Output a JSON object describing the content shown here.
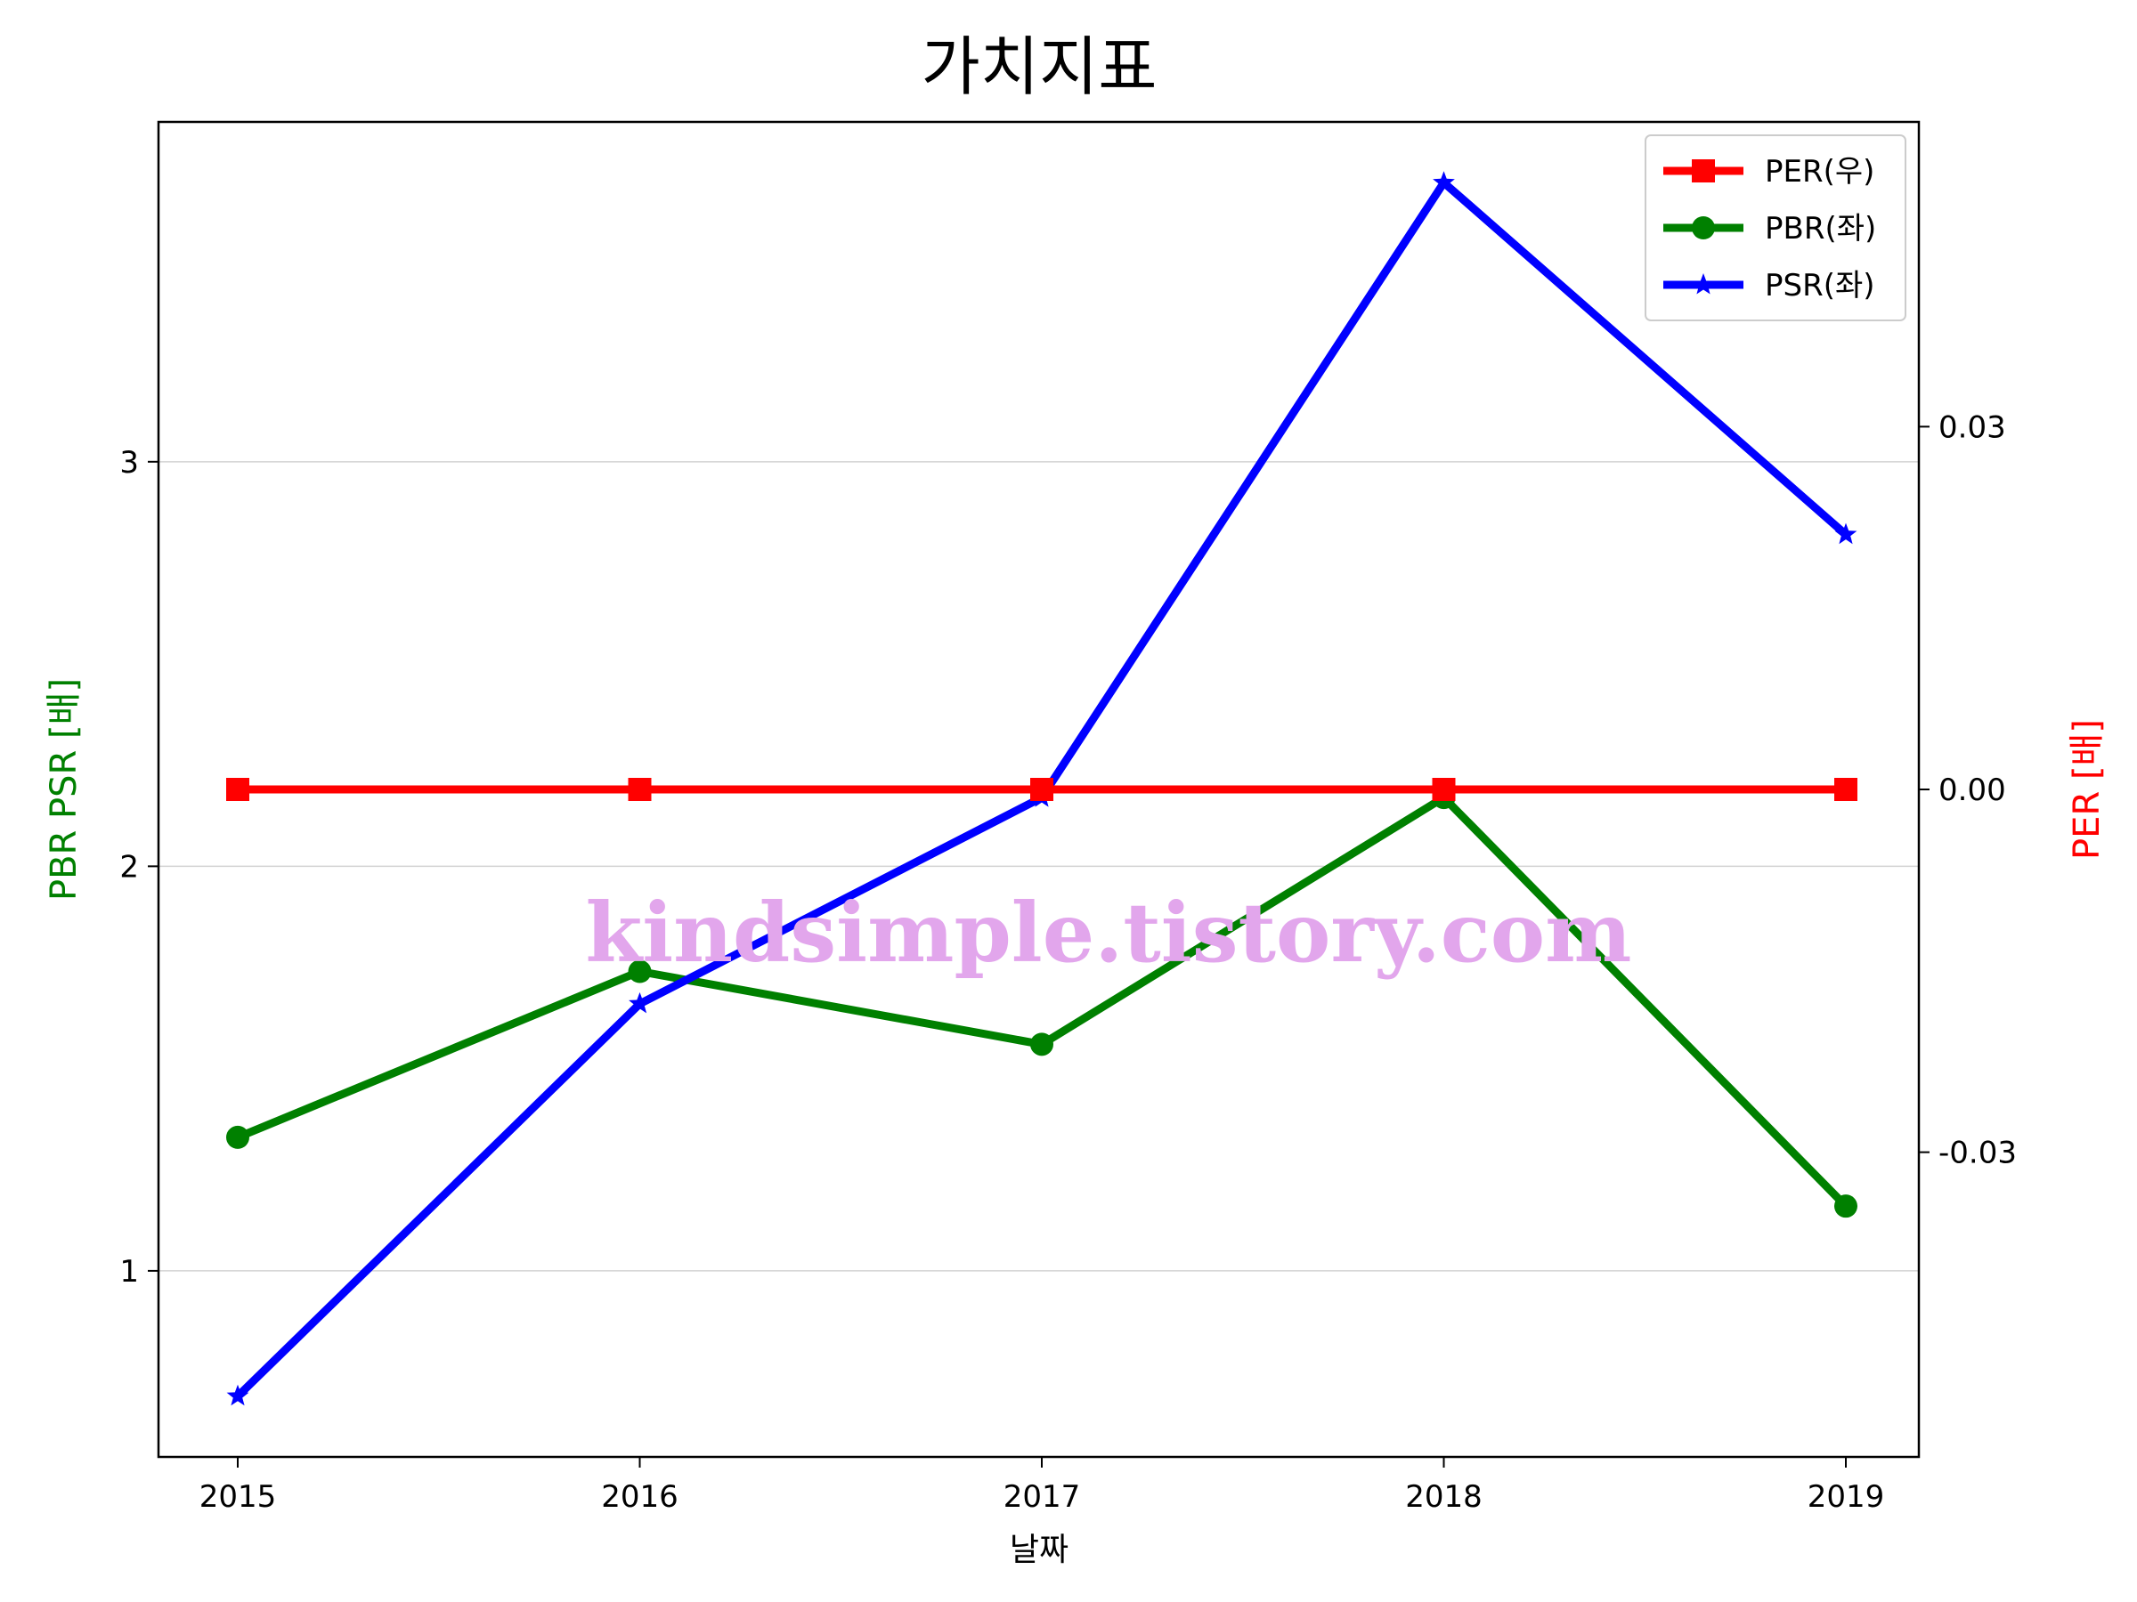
{
  "chart_data": {
    "type": "line",
    "title": "가치지표",
    "xlabel": "날짜",
    "ylabel_left": "PBR PSR [배]",
    "ylabel_right": "PER [배]",
    "categories": [
      "2015",
      "2016",
      "2017",
      "2018",
      "2019"
    ],
    "left_axis": {
      "ylim": [
        0.54,
        3.84
      ],
      "ticks": [
        1,
        2,
        3
      ],
      "tick_labels": [
        "1",
        "2",
        "3"
      ]
    },
    "right_axis": {
      "ylim": [
        -0.0552,
        0.0552
      ],
      "ticks": [
        0.03,
        0.0,
        -0.03
      ],
      "tick_labels": [
        "0.03",
        "0.00",
        "-0.03"
      ]
    },
    "grid": "horizontal",
    "legend_position": "top-right",
    "series": [
      {
        "name": "PER(우)",
        "axis": "right",
        "color": "#ff0000",
        "marker": "square",
        "values": [
          0,
          0,
          0,
          0,
          0
        ]
      },
      {
        "name": "PBR(좌)",
        "axis": "left",
        "color": "#008000",
        "marker": "circle",
        "values": [
          1.33,
          1.74,
          1.56,
          2.17,
          1.16
        ]
      },
      {
        "name": "PSR(좌)",
        "axis": "left",
        "color": "#0000ff",
        "marker": "star",
        "values": [
          0.69,
          1.66,
          2.17,
          3.69,
          2.82
        ]
      }
    ],
    "watermark": {
      "text": "kindsimple.tistory.com",
      "color": "#e2a6ec"
    }
  }
}
